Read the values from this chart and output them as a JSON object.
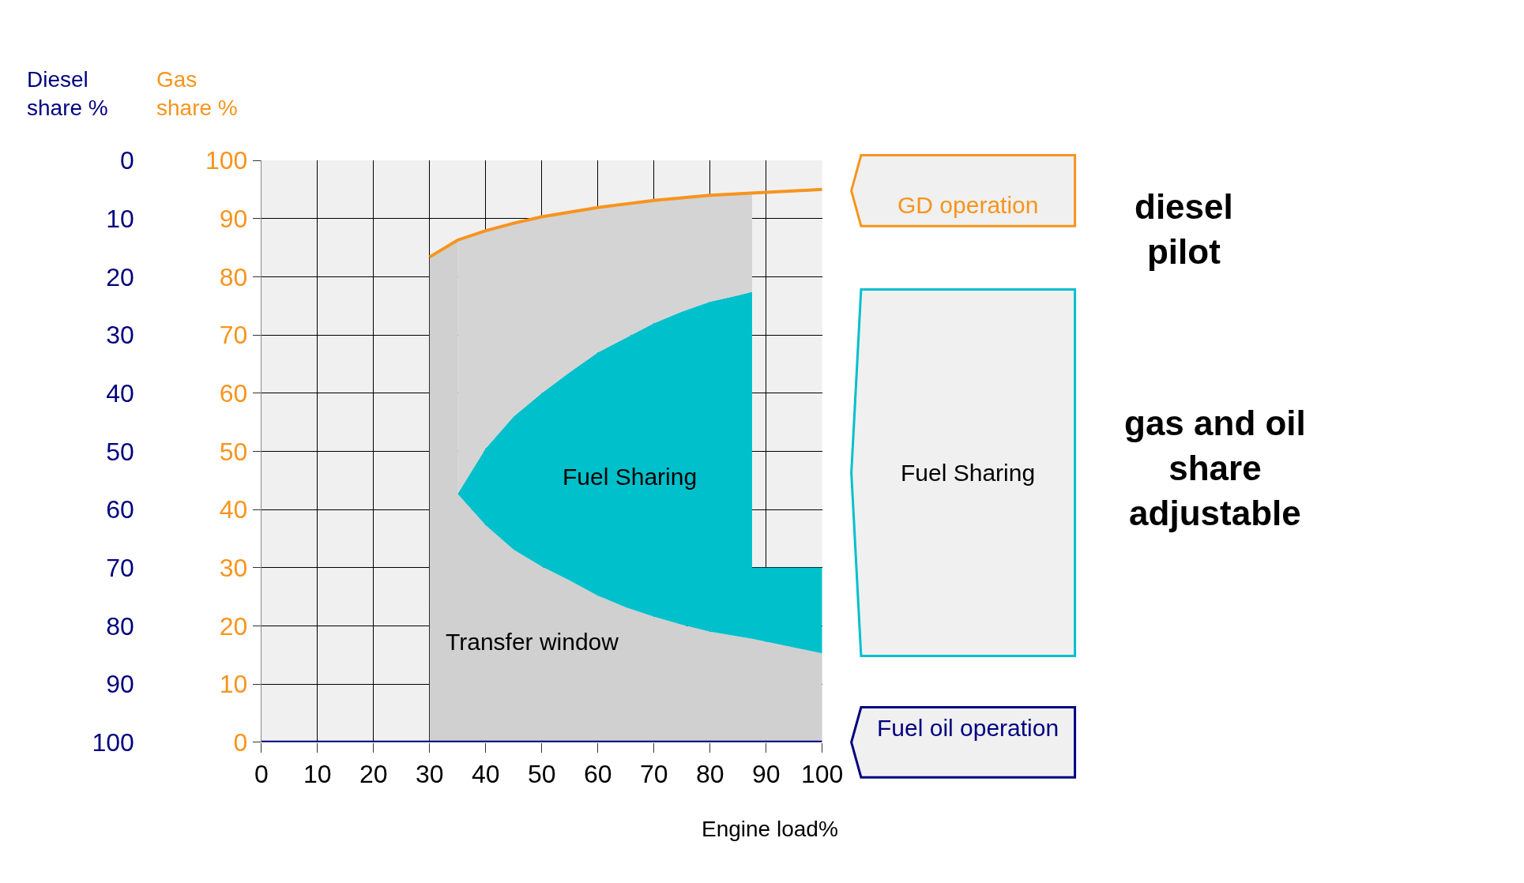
{
  "chart_data": {
    "type": "area",
    "stacked": true,
    "xlabel": "Engine load%",
    "ylabel": "Gas share %",
    "y2label": "Diesel share %",
    "xlim": [
      0,
      100
    ],
    "xticks": [
      0,
      10,
      20,
      30,
      40,
      50,
      60,
      70,
      80,
      90,
      100
    ],
    "ylim": [
      0,
      100
    ],
    "yticks": [
      0,
      10,
      20,
      30,
      40,
      50,
      60,
      70,
      80,
      90,
      100
    ],
    "y2lim": [
      100,
      0
    ],
    "y2ticks": [
      0,
      10,
      20,
      30,
      40,
      50,
      60,
      70,
      80,
      90,
      100
    ],
    "grid": true,
    "x": [
      30,
      35,
      35,
      40,
      45,
      50,
      55,
      60,
      65,
      70,
      75,
      80,
      85,
      87.5,
      87.5,
      100
    ],
    "annotations": [
      "Fuel Sharing",
      "Transfer window",
      "diesel\npilot",
      "gas and oil\nshare\nadjustable"
    ],
    "series": [
      {
        "color": "#d0d0d0",
        "values": [
          83.4,
          86.3,
          42.7,
          37.3,
          33.1,
          30.2,
          27.8,
          25.2,
          23.2,
          21.6,
          20.2,
          19,
          18.2,
          17.8,
          17.8,
          15.3
        ]
      },
      {
        "name": "Fuel Sharing",
        "color": "#00c0cc",
        "values": [
          0,
          0,
          0,
          13.2,
          22.9,
          29.8,
          35.8,
          41.8,
          46.3,
          50.4,
          53.8,
          56.7,
          58.6,
          59.6,
          12.2,
          14.7
        ]
      },
      {
        "color": "#d4d4d4",
        "values": [
          0,
          0,
          43.6,
          37.4,
          33.2,
          30.3,
          27.5,
          24.9,
          23,
          21.1,
          19.6,
          18.3,
          17.4,
          16.9,
          0,
          0
        ]
      },
      {
        "type": "line",
        "name": "GD operation",
        "color": "#f7941d",
        "x": [
          30,
          35,
          40,
          45,
          50,
          60,
          70,
          80,
          90,
          100
        ],
        "values": [
          83.4,
          86.3,
          87.9,
          89.2,
          90.3,
          91.9,
          93.1,
          94,
          94.5,
          95
        ]
      },
      {
        "type": "line",
        "name": "Fuel oil operation",
        "color": "#000080",
        "x": [
          0,
          100
        ],
        "values": [
          0,
          0
        ]
      }
    ]
  }
}
